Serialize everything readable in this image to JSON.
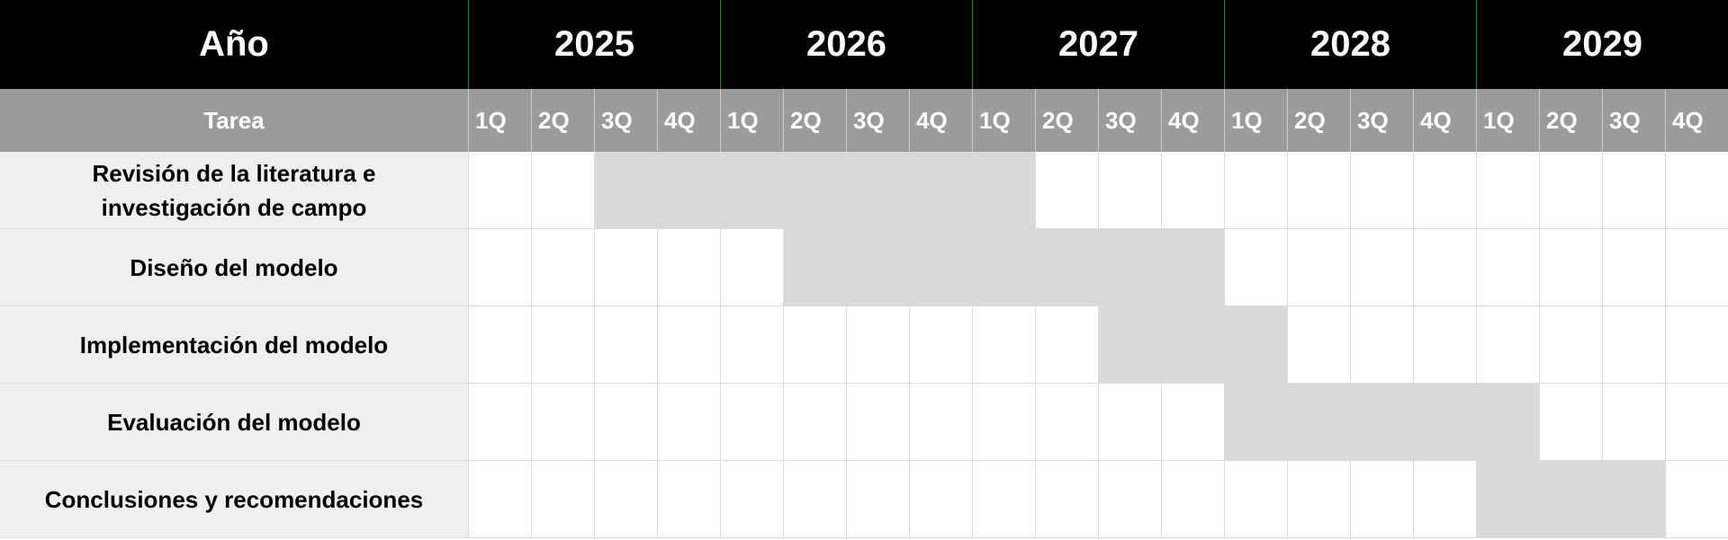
{
  "chart_data": {
    "type": "table",
    "corner_year_label": "Año",
    "corner_task_label": "Tarea",
    "years": [
      "2025",
      "2026",
      "2027",
      "2028",
      "2029"
    ],
    "quarters": [
      "1Q",
      "2Q",
      "3Q",
      "4Q"
    ],
    "tasks": [
      {
        "label": "Revisión de la literatura e investigación de campo",
        "start": "2025 3Q",
        "end": "2027 1Q"
      },
      {
        "label": "Diseño del modelo",
        "start": "2026 2Q",
        "end": "2027 4Q"
      },
      {
        "label": "Implementación del modelo",
        "start": "2027 3Q",
        "end": "2028 1Q"
      },
      {
        "label": "Evaluación del modelo",
        "start": "2028 1Q",
        "end": "2029 1Q"
      },
      {
        "label": "Conclusiones y recomendaciones",
        "start": "2029 1Q",
        "end": "2029 3Q"
      }
    ]
  },
  "colors": {
    "year_header_bg": "#000000",
    "quarter_header_bg": "#9b9b9b",
    "task_label_bg": "#efefef",
    "active_bar": "#d9d9d9",
    "year_divider": "#1f8a3c"
  }
}
